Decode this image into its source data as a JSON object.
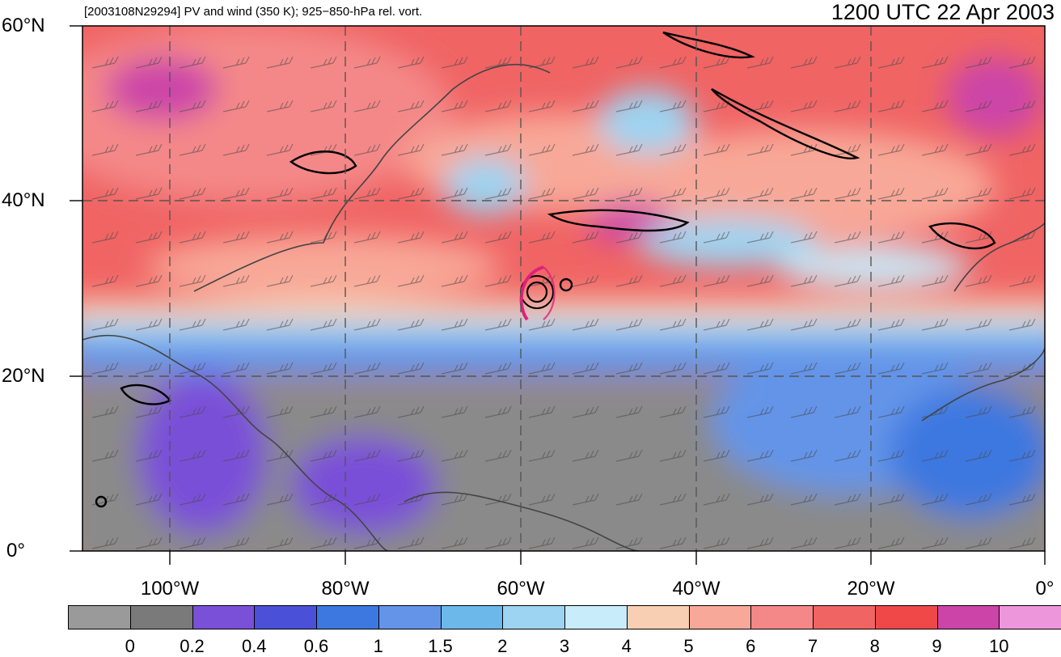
{
  "header": {
    "subtitle": "[2003108N29294] PV and wind (350 K); 925−850-hPa rel. vort.",
    "datetime": "1200 UTC 22 Apr 2003"
  },
  "map": {
    "lon_range": [
      -110,
      0
    ],
    "lat_range": [
      0,
      60
    ],
    "lat_labels": [
      "60°N",
      "40°N",
      "20°N",
      "0°"
    ],
    "lon_labels": [
      "100°W",
      "80°W",
      "60°W",
      "40°W",
      "20°W",
      "0°"
    ],
    "gridlines": "dashed",
    "storm_center": {
      "lon": -58,
      "lat": 29.5
    }
  },
  "colorbar": {
    "labels": [
      "0",
      "0.2",
      "0.4",
      "0.6",
      "1",
      "1.5",
      "2",
      "3",
      "4",
      "5",
      "6",
      "7",
      "8",
      "9",
      "10"
    ],
    "colors": [
      "#9a9a9a",
      "#7a7a7a",
      "#7a50d8",
      "#4a50d8",
      "#3c78e0",
      "#6494e8",
      "#6cb8ea",
      "#9cd4f2",
      "#c8ecfa",
      "#f8cfb2",
      "#f8a898",
      "#f48888",
      "#f06464",
      "#f04848",
      "#cc44a8",
      "#ee96dc"
    ]
  }
}
